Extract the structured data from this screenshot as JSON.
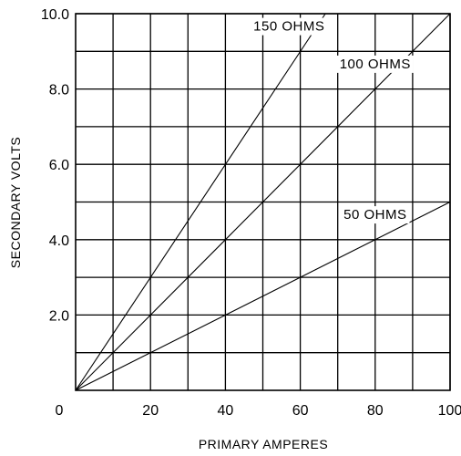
{
  "chart_data": {
    "type": "line",
    "xlabel": "PRIMARY AMPERES",
    "ylabel": "SECONDARY VOLTS",
    "xlim": [
      0,
      100
    ],
    "ylim": [
      0,
      10
    ],
    "grid": true,
    "x_ticks": [
      {
        "value": 0,
        "label": "0"
      },
      {
        "value": 20,
        "label": "20"
      },
      {
        "value": 40,
        "label": "40"
      },
      {
        "value": 60,
        "label": "60"
      },
      {
        "value": 80,
        "label": "80"
      },
      {
        "value": 100,
        "label": "100"
      }
    ],
    "y_ticks": [
      {
        "value": 2,
        "label": "2.0"
      },
      {
        "value": 4,
        "label": "4.0"
      },
      {
        "value": 6,
        "label": "6.0"
      },
      {
        "value": 8,
        "label": "8.0"
      },
      {
        "value": 10,
        "label": "10.0"
      }
    ],
    "x_gridlines": [
      10,
      20,
      30,
      40,
      50,
      60,
      70,
      80,
      90,
      100
    ],
    "y_gridlines": [
      1,
      2,
      3,
      4,
      5,
      6,
      7,
      8,
      9,
      10
    ],
    "series": [
      {
        "name": "150 OHMS",
        "x": [
          0,
          66.7
        ],
        "y": [
          0,
          10
        ],
        "label_at": [
          57,
          9.55
        ]
      },
      {
        "name": "100 OHMS",
        "x": [
          0,
          100
        ],
        "y": [
          0,
          10
        ],
        "label_at": [
          80,
          8.55
        ]
      },
      {
        "name": "50 OHMS",
        "x": [
          0,
          100
        ],
        "y": [
          0,
          5
        ],
        "label_at": [
          80,
          4.55
        ]
      }
    ],
    "colors": {
      "line": "#000000",
      "grid": "#000000",
      "background": "#ffffff"
    }
  }
}
